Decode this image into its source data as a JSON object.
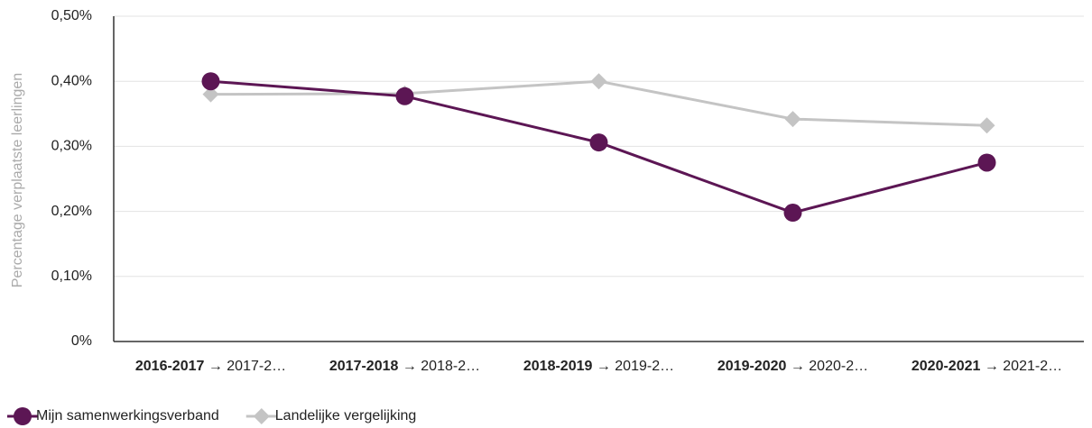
{
  "chart_data": {
    "type": "line",
    "y_label": "Percentage verplaatste leerlingen",
    "categories": [
      "2016-2017 → 2017-2…",
      "2017-2018 → 2018-2…",
      "2018-2019 → 2019-2…",
      "2019-2020 → 2020-2…",
      "2020-2021 → 2021-2…"
    ],
    "series": [
      {
        "name": "Mijn samenwerkingsverband",
        "color": "#5c1654",
        "marker": "circle",
        "values": [
          0.4,
          0.377,
          0.306,
          0.198,
          0.275
        ]
      },
      {
        "name": "Landelijke vergelijking",
        "color": "#c4c4c4",
        "marker": "diamond",
        "values": [
          0.38,
          0.381,
          0.4,
          0.342,
          0.332
        ]
      }
    ],
    "ylim": [
      0,
      0.5
    ],
    "yticks": [
      {
        "value": 0,
        "label": "0%"
      },
      {
        "value": 0.1,
        "label": "0,10%"
      },
      {
        "value": 0.2,
        "label": "0,20%"
      },
      {
        "value": 0.3,
        "label": "0,30%"
      },
      {
        "value": 0.4,
        "label": "0,40%"
      },
      {
        "value": 0.5,
        "label": "0,50%"
      }
    ],
    "grid": true,
    "legend": "bottom-left"
  }
}
